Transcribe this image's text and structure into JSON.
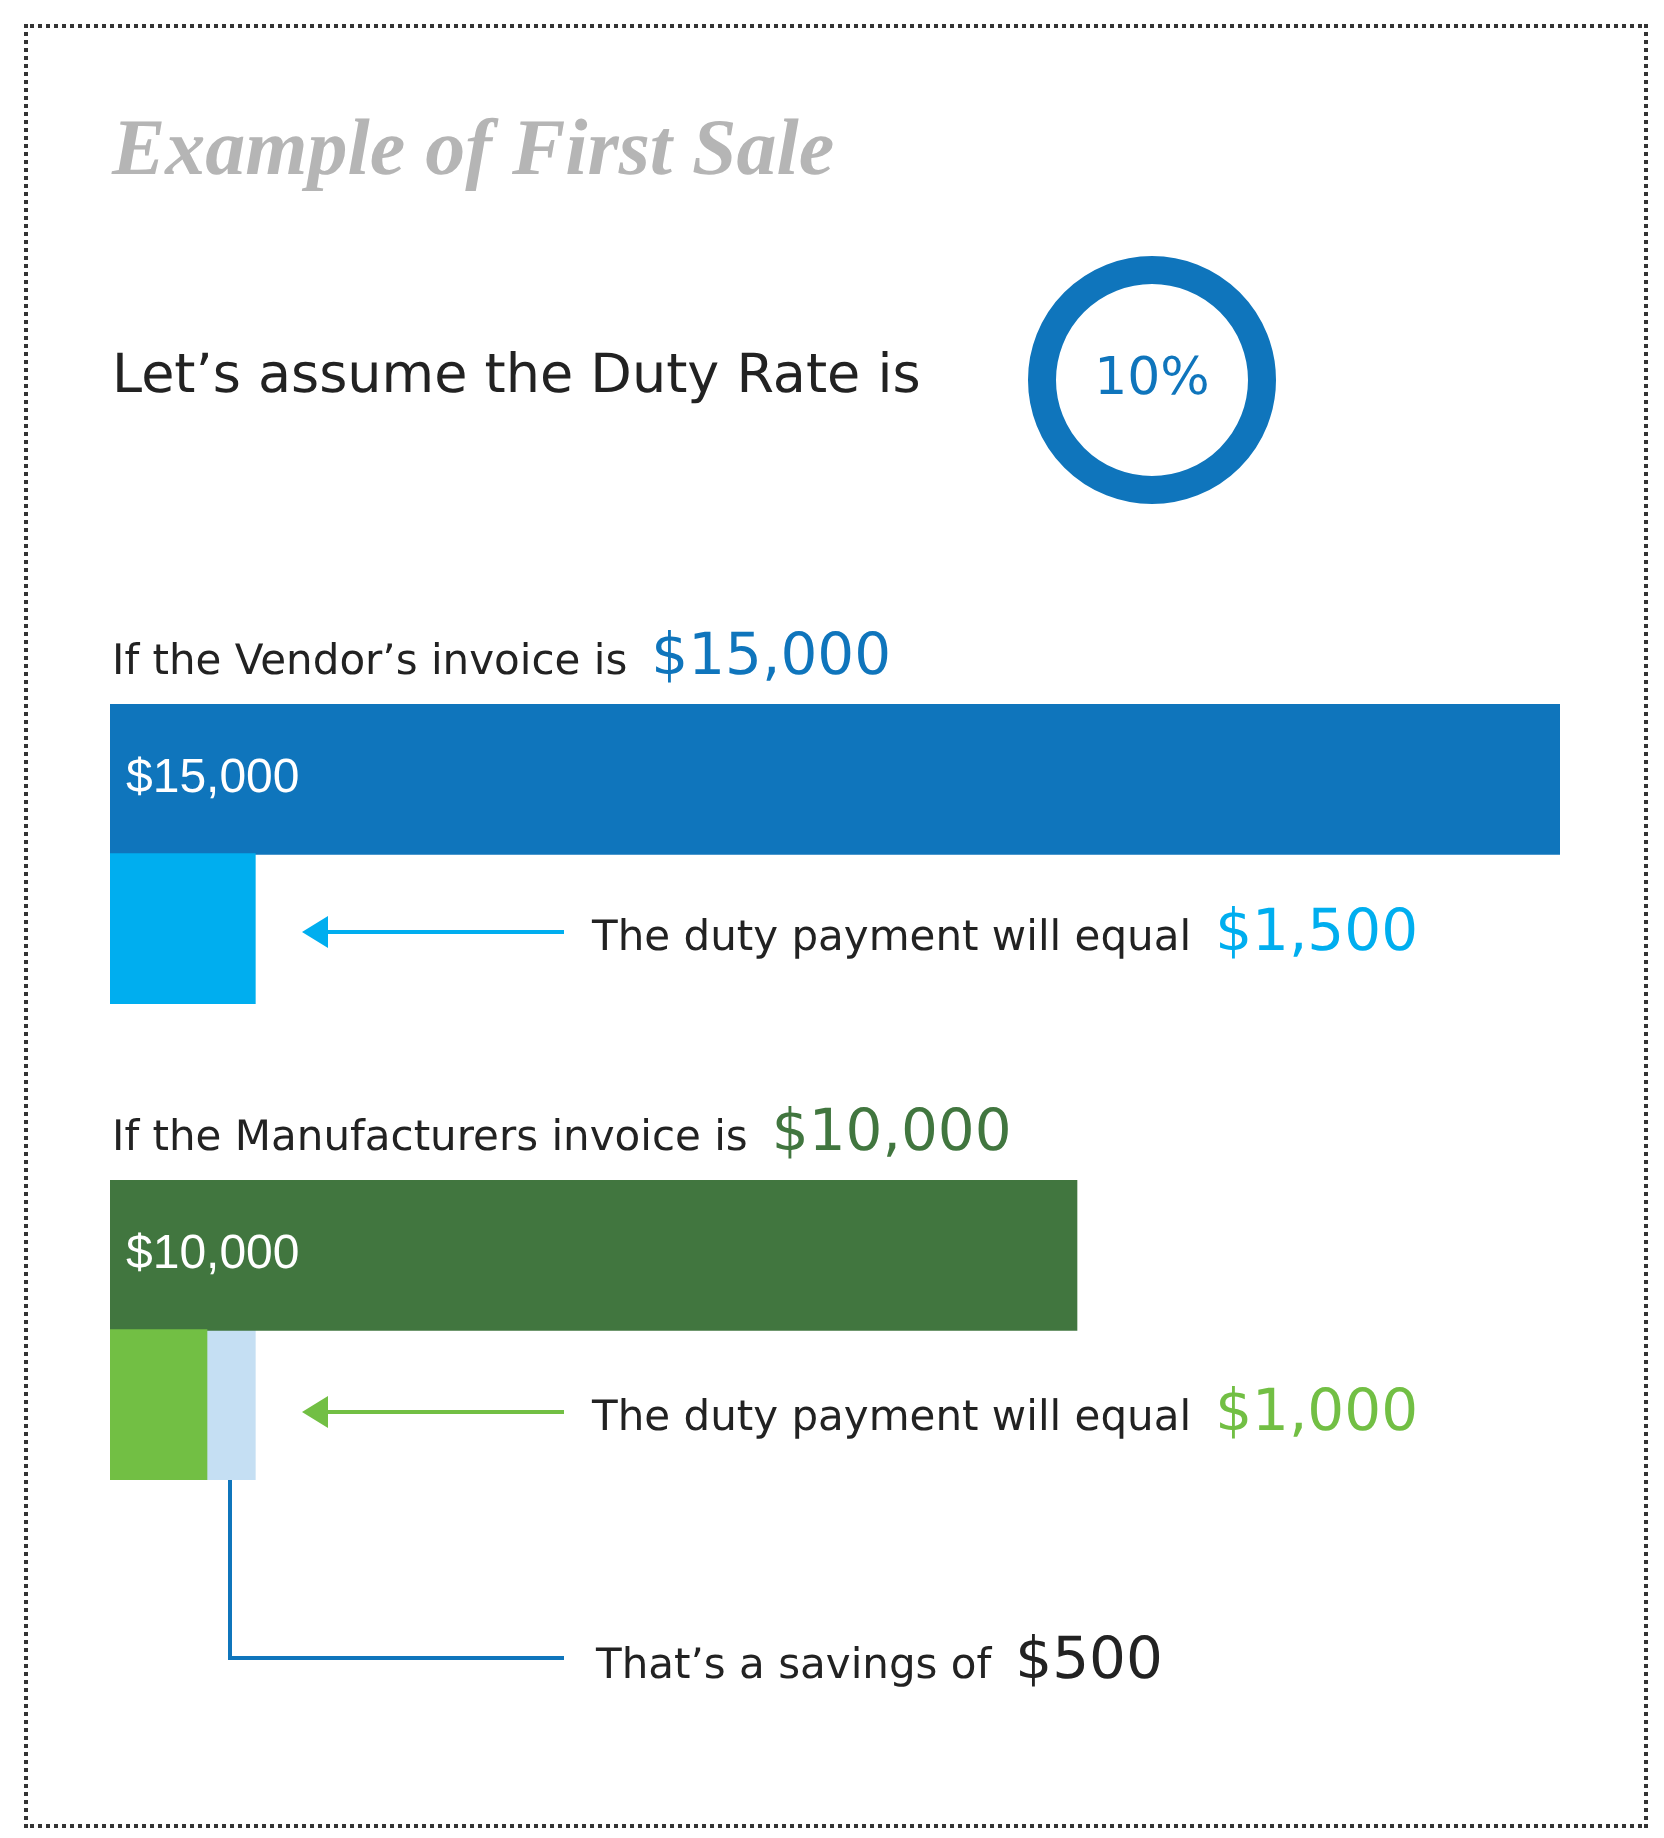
{
  "chart_data": [
    {
      "type": "other",
      "title": "Example of First Sale",
      "subtitle": "Let’s assume the Duty Rate is",
      "annotations": [
        "10%"
      ]
    },
    {
      "type": "bar",
      "orientation": "horizontal",
      "title": "If the Vendor’s invoice is",
      "categories": [
        null,
        null
      ],
      "values": [
        15000,
        1500
      ],
      "colors": [
        "#0f75bc",
        "#00aeef"
      ],
      "value_labels": [
        "$15,000",
        null
      ],
      "tick_labels": false,
      "annotations": [
        "$15,000",
        "The duty payment will equal",
        "$1,500"
      ]
    },
    {
      "type": "bar",
      "orientation": "horizontal",
      "stacked": true,
      "title": "If the Manufacturers invoice is",
      "categories": [
        null,
        null
      ],
      "series": [
        {
          "values": [
            10000,
            1000
          ],
          "colors": [
            "#41763f",
            "#72bf44"
          ],
          "value_labels": [
            "$10,000",
            null
          ]
        },
        {
          "values": [
            null,
            500
          ],
          "color": "#c5dff3"
        }
      ],
      "tick_labels": false,
      "annotations": [
        "$10,000",
        "The duty payment will equal",
        "$1,000",
        "That’s a savings of",
        "$500"
      ]
    }
  ]
}
